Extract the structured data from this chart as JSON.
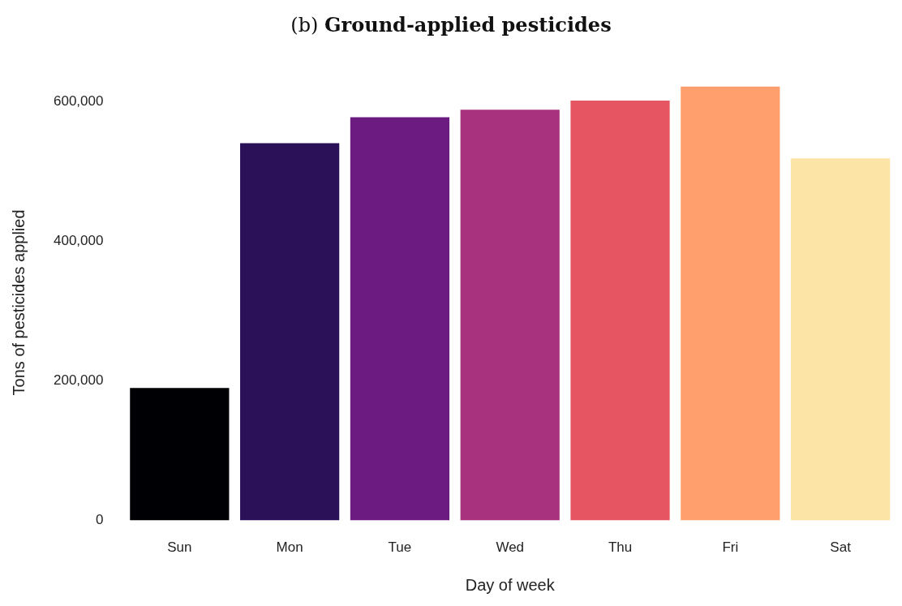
{
  "chart_data": {
    "type": "bar",
    "title": "(b) Ground-applied pesticides",
    "xlabel": "Day of week",
    "ylabel": "Tons of pesticides applied",
    "categories": [
      "Sun",
      "Mon",
      "Tue",
      "Wed",
      "Thu",
      "Fri",
      "Sat"
    ],
    "values": [
      190000,
      541000,
      578000,
      589000,
      602000,
      622000,
      519000
    ],
    "colors": [
      "#000004",
      "#2a1158",
      "#6c1c81",
      "#a8327d",
      "#e65562",
      "#fe9f6d",
      "#fce3a6"
    ],
    "ylim": [
      0,
      625000
    ],
    "yticks": [
      {
        "value": 0,
        "label": "0"
      },
      {
        "value": 200000,
        "label": "200,000"
      },
      {
        "value": 400000,
        "label": "400,000"
      },
      {
        "value": 600000,
        "label": "600,000"
      }
    ],
    "grid": false,
    "legend": false
  }
}
